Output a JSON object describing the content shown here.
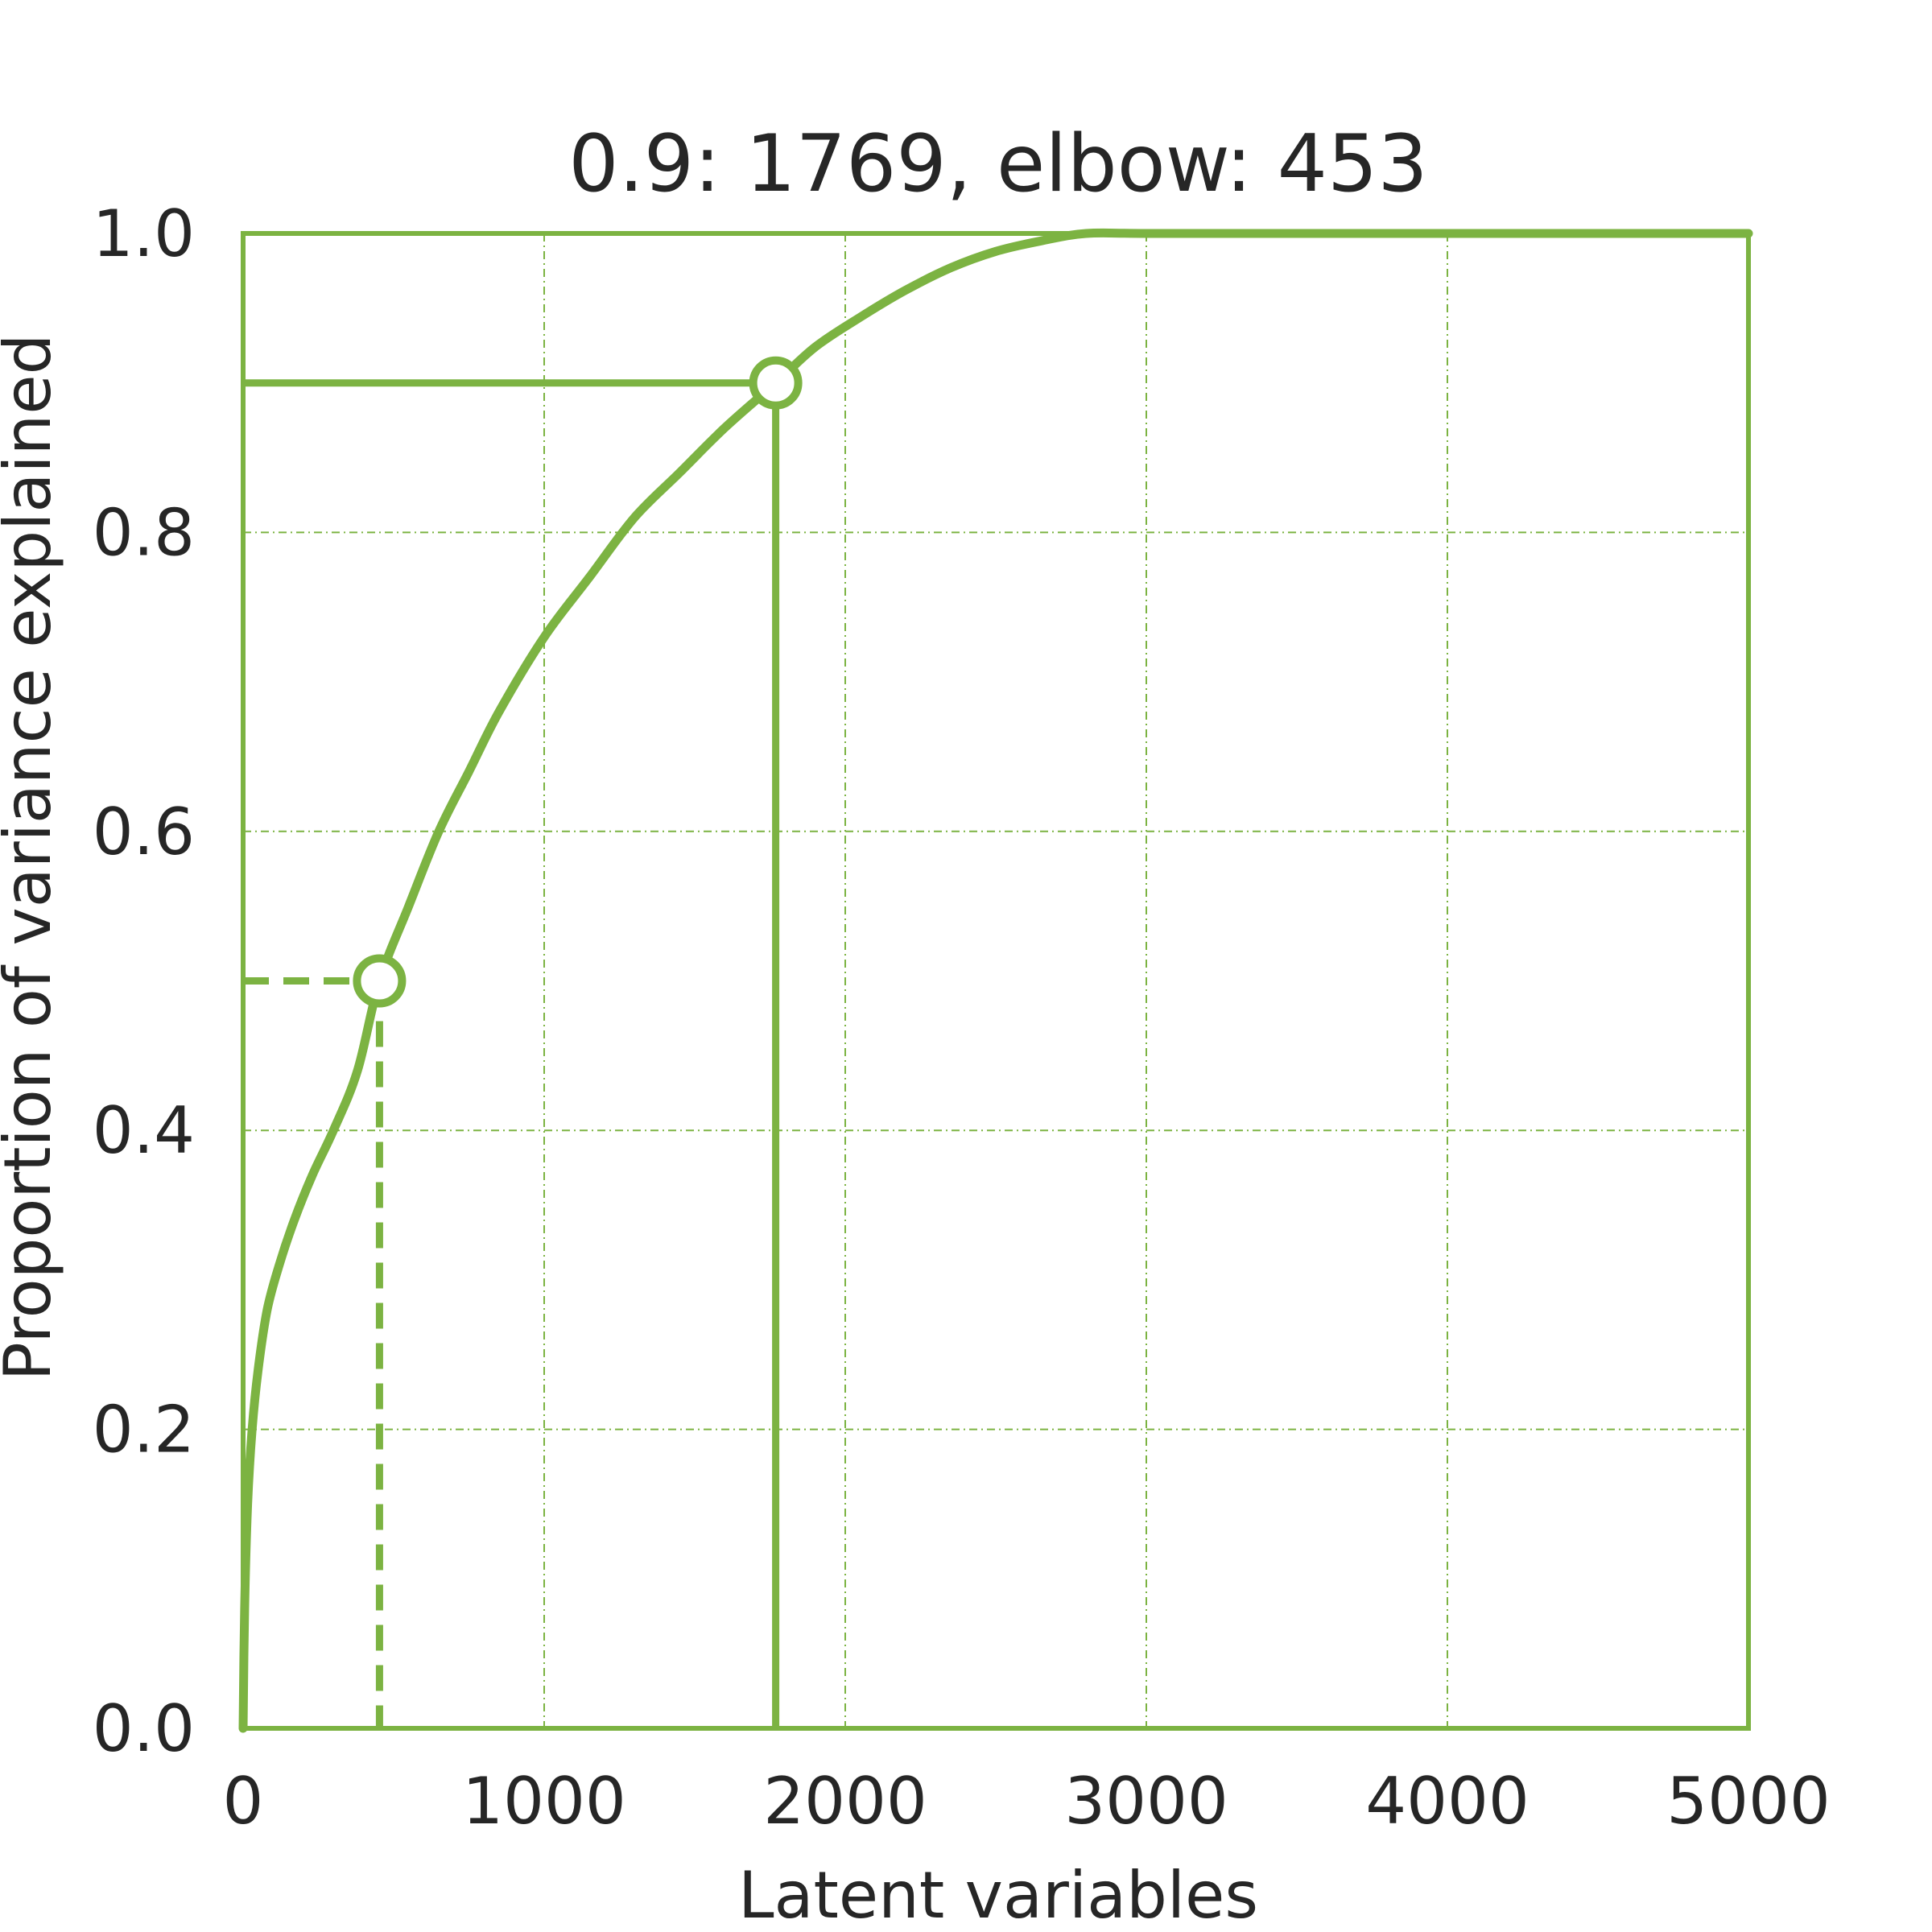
{
  "chart_data": {
    "type": "line",
    "title": "0.9: 1769, elbow: 453",
    "xlabel": "Latent variables",
    "ylabel": "Proportion of variance explained",
    "xlim": [
      0,
      5000
    ],
    "ylim": [
      0,
      1.0
    ],
    "xticks": [
      0,
      1000,
      2000,
      3000,
      4000,
      5000
    ],
    "xtick_labels": [
      "0",
      "1000",
      "2000",
      "3000",
      "4000",
      "5000"
    ],
    "yticks": [
      0.0,
      0.2,
      0.4,
      0.6,
      0.8,
      1.0
    ],
    "ytick_labels": [
      "0.0",
      "0.2",
      "0.4",
      "0.6",
      "0.8",
      "1.0"
    ],
    "grid": true,
    "color": "#7cb342",
    "series": [
      {
        "x": [
          0,
          5,
          15,
          30,
          50,
          80,
          120,
          170,
          230,
          300,
          380,
          453,
          550,
          650,
          750,
          850,
          1000,
          1150,
          1300,
          1450,
          1600,
          1769,
          1900,
          2050,
          2200,
          2350,
          2500,
          2650,
          2800,
          3000,
          3500,
          4000,
          4500,
          5000
        ],
        "y": [
          0.0,
          0.08,
          0.15,
          0.2,
          0.24,
          0.28,
          0.31,
          0.34,
          0.37,
          0.4,
          0.44,
          0.5,
          0.55,
          0.6,
          0.64,
          0.68,
          0.73,
          0.77,
          0.81,
          0.84,
          0.87,
          0.9,
          0.924,
          0.944,
          0.962,
          0.977,
          0.988,
          0.995,
          1.0,
          1.0,
          1.0,
          1.0,
          1.0,
          1.0
        ]
      }
    ],
    "markers": [
      {
        "label": "0.9",
        "x": 1769,
        "y": 0.9,
        "line_style": "solid"
      },
      {
        "label": "elbow",
        "x": 453,
        "y": 0.5,
        "line_style": "dashed"
      }
    ]
  }
}
